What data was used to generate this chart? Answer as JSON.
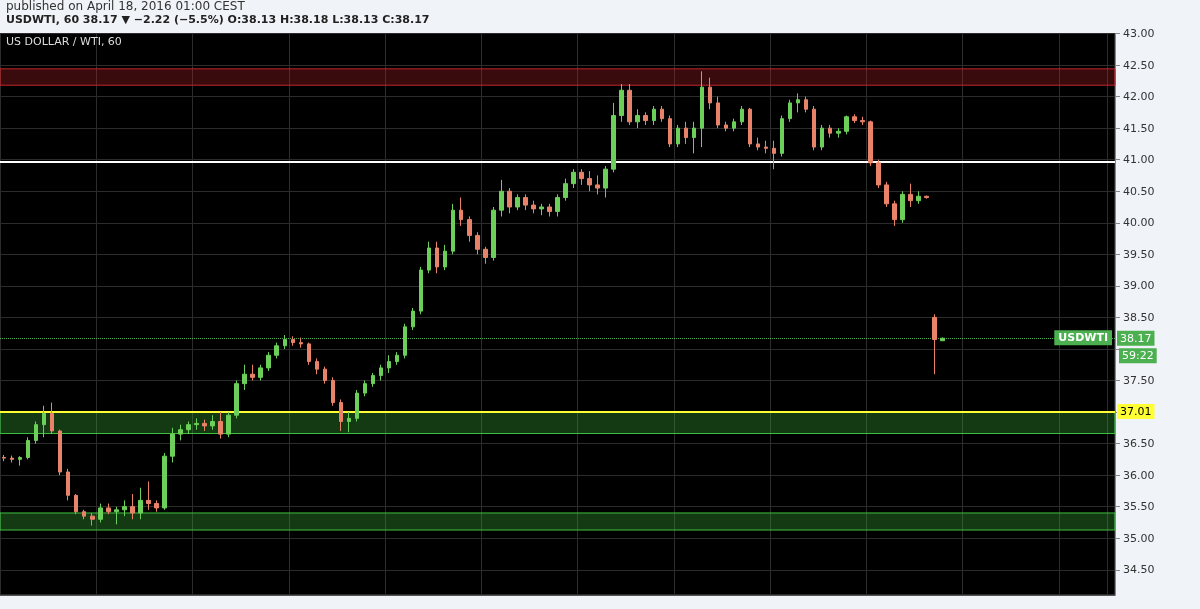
{
  "chart_data": {
    "type": "candlestick",
    "title": "published on April 18, 2016 01:00 CEST",
    "subtitle": "USDWTI, 60 38.17 ▼ −2.22 (−5.5%) O:38.13 H:38.18 L:38.13 C:38.17",
    "annotations": [
      "US DOLLAR / WTI, 60",
      {
        "text": "USDWTI",
        "y": 38.17
      },
      "59:22"
    ],
    "categories": [
      null,
      null,
      null,
      null,
      null,
      null,
      null,
      null,
      null,
      null,
      null,
      null,
      null,
      null,
      null,
      null,
      null,
      null,
      null,
      null,
      null,
      null,
      null,
      null,
      null,
      null,
      null,
      null,
      null,
      null,
      null,
      null,
      null,
      null,
      null,
      null,
      null,
      null,
      null,
      null,
      null,
      null,
      null,
      null,
      null,
      null,
      null,
      null,
      null,
      null,
      null,
      null,
      null,
      null,
      null,
      null,
      null,
      null,
      null,
      null,
      null,
      null,
      null,
      null,
      null,
      null,
      null,
      null,
      null,
      null,
      null,
      null,
      null,
      null,
      null,
      null,
      null,
      null,
      null,
      null,
      null,
      null,
      null,
      null,
      null,
      null,
      null,
      null,
      null,
      null,
      null,
      null,
      null,
      null,
      null,
      null,
      null,
      null,
      null,
      null,
      null,
      null,
      null,
      null,
      null,
      null,
      null,
      null,
      null,
      null,
      null,
      null,
      null,
      null,
      null,
      null,
      null,
      null,
      null,
      null,
      null,
      null,
      null,
      null,
      null,
      null,
      null,
      null,
      null,
      null,
      null,
      null,
      null,
      null,
      null,
      null,
      null,
      null,
      null
    ],
    "ohlc": [
      [
        36.28,
        36.32,
        36.22,
        36.27
      ],
      [
        36.27,
        36.31,
        36.2,
        36.25
      ],
      [
        36.25,
        36.3,
        36.15,
        36.28
      ],
      [
        36.28,
        36.6,
        36.25,
        36.55
      ],
      [
        36.55,
        36.85,
        36.5,
        36.8
      ],
      [
        36.8,
        37.1,
        36.6,
        36.98
      ],
      [
        36.98,
        37.15,
        36.65,
        36.7
      ],
      [
        36.7,
        36.72,
        36.0,
        36.05
      ],
      [
        36.05,
        36.1,
        35.6,
        35.68
      ],
      [
        35.68,
        35.7,
        35.38,
        35.42
      ],
      [
        35.42,
        35.45,
        35.3,
        35.35
      ],
      [
        35.35,
        35.4,
        35.2,
        35.3
      ],
      [
        35.3,
        35.55,
        35.25,
        35.48
      ],
      [
        35.48,
        35.55,
        35.38,
        35.42
      ],
      [
        35.42,
        35.5,
        35.22,
        35.45
      ],
      [
        35.45,
        35.6,
        35.35,
        35.5
      ],
      [
        35.5,
        35.7,
        35.3,
        35.4
      ],
      [
        35.4,
        35.8,
        35.3,
        35.6
      ],
      [
        35.6,
        35.9,
        35.45,
        35.55
      ],
      [
        35.55,
        35.6,
        35.42,
        35.48
      ],
      [
        35.48,
        36.35,
        35.45,
        36.3
      ],
      [
        36.3,
        36.75,
        36.2,
        36.65
      ],
      [
        36.65,
        36.8,
        36.55,
        36.72
      ],
      [
        36.72,
        36.85,
        36.65,
        36.8
      ],
      [
        36.8,
        36.9,
        36.72,
        36.82
      ],
      [
        36.82,
        36.88,
        36.7,
        36.78
      ],
      [
        36.78,
        36.95,
        36.72,
        36.85
      ],
      [
        36.85,
        37.0,
        36.58,
        36.65
      ],
      [
        36.65,
        37.0,
        36.6,
        36.95
      ],
      [
        36.95,
        37.5,
        36.9,
        37.45
      ],
      [
        37.45,
        37.75,
        37.35,
        37.6
      ],
      [
        37.6,
        37.75,
        37.5,
        37.55
      ],
      [
        37.55,
        37.75,
        37.5,
        37.7
      ],
      [
        37.7,
        37.95,
        37.65,
        37.9
      ],
      [
        37.9,
        38.1,
        37.85,
        38.05
      ],
      [
        38.05,
        38.22,
        38.0,
        38.15
      ],
      [
        38.15,
        38.2,
        38.05,
        38.1
      ],
      [
        38.1,
        38.18,
        38.02,
        38.08
      ],
      [
        38.08,
        38.1,
        37.75,
        37.8
      ],
      [
        37.8,
        37.85,
        37.6,
        37.68
      ],
      [
        37.68,
        37.72,
        37.45,
        37.5
      ],
      [
        37.5,
        37.55,
        37.1,
        37.15
      ],
      [
        37.15,
        37.2,
        36.7,
        36.85
      ],
      [
        36.85,
        37.0,
        36.68,
        36.9
      ],
      [
        36.9,
        37.35,
        36.85,
        37.3
      ],
      [
        37.3,
        37.5,
        37.25,
        37.45
      ],
      [
        37.45,
        37.62,
        37.4,
        37.58
      ],
      [
        37.58,
        37.75,
        37.5,
        37.7
      ],
      [
        37.7,
        37.9,
        37.62,
        37.8
      ],
      [
        37.8,
        37.95,
        37.75,
        37.9
      ],
      [
        37.9,
        38.4,
        37.85,
        38.35
      ],
      [
        38.35,
        38.65,
        38.3,
        38.6
      ],
      [
        38.6,
        39.3,
        38.55,
        39.25
      ],
      [
        39.25,
        39.7,
        39.2,
        39.6
      ],
      [
        39.6,
        39.7,
        39.2,
        39.3
      ],
      [
        39.3,
        39.65,
        39.25,
        39.55
      ],
      [
        39.55,
        40.3,
        39.5,
        40.2
      ],
      [
        40.2,
        40.4,
        39.95,
        40.05
      ],
      [
        40.05,
        40.1,
        39.7,
        39.8
      ],
      [
        39.8,
        39.85,
        39.5,
        39.58
      ],
      [
        39.58,
        39.62,
        39.35,
        39.45
      ],
      [
        39.45,
        40.25,
        39.4,
        40.2
      ],
      [
        40.2,
        40.68,
        40.1,
        40.5
      ],
      [
        40.5,
        40.55,
        40.15,
        40.25
      ],
      [
        40.25,
        40.45,
        40.2,
        40.4
      ],
      [
        40.4,
        40.45,
        40.2,
        40.28
      ],
      [
        40.28,
        40.35,
        40.15,
        40.22
      ],
      [
        40.22,
        40.3,
        40.12,
        40.25
      ],
      [
        40.25,
        40.3,
        40.1,
        40.18
      ],
      [
        40.18,
        40.45,
        40.1,
        40.4
      ],
      [
        40.4,
        40.7,
        40.35,
        40.62
      ],
      [
        40.62,
        40.85,
        40.55,
        40.8
      ],
      [
        40.8,
        40.85,
        40.6,
        40.7
      ],
      [
        40.7,
        40.82,
        40.5,
        40.6
      ],
      [
        40.6,
        40.75,
        40.45,
        40.55
      ],
      [
        40.55,
        40.9,
        40.4,
        40.85
      ],
      [
        40.85,
        41.9,
        40.8,
        41.7
      ],
      [
        41.7,
        42.2,
        41.6,
        42.1
      ],
      [
        42.1,
        42.2,
        41.55,
        41.6
      ],
      [
        41.6,
        41.8,
        41.5,
        41.7
      ],
      [
        41.7,
        41.75,
        41.55,
        41.62
      ],
      [
        41.62,
        41.85,
        41.55,
        41.8
      ],
      [
        41.8,
        41.85,
        41.6,
        41.65
      ],
      [
        41.65,
        41.7,
        41.2,
        41.25
      ],
      [
        41.25,
        41.55,
        41.2,
        41.5
      ],
      [
        41.5,
        41.6,
        41.25,
        41.35
      ],
      [
        41.35,
        41.6,
        41.1,
        41.5
      ],
      [
        41.5,
        42.4,
        41.2,
        42.15
      ],
      [
        42.15,
        42.3,
        41.8,
        41.9
      ],
      [
        41.9,
        42.0,
        41.5,
        41.55
      ],
      [
        41.55,
        41.6,
        41.45,
        41.5
      ],
      [
        41.5,
        41.65,
        41.45,
        41.6
      ],
      [
        41.6,
        41.85,
        41.55,
        41.8
      ],
      [
        41.8,
        41.82,
        41.2,
        41.25
      ],
      [
        41.25,
        41.35,
        41.15,
        41.2
      ],
      [
        41.2,
        41.3,
        41.1,
        41.18
      ],
      [
        41.18,
        41.3,
        40.85,
        41.1
      ],
      [
        41.1,
        41.7,
        41.05,
        41.65
      ],
      [
        41.65,
        41.95,
        41.6,
        41.9
      ],
      [
        41.9,
        42.05,
        41.75,
        41.95
      ],
      [
        41.95,
        42.0,
        41.75,
        41.8
      ],
      [
        41.8,
        41.85,
        41.15,
        41.2
      ],
      [
        41.2,
        41.55,
        41.15,
        41.5
      ],
      [
        41.5,
        41.55,
        41.35,
        41.42
      ],
      [
        41.42,
        41.5,
        41.35,
        41.45
      ],
      [
        41.45,
        41.7,
        41.4,
        41.68
      ],
      [
        41.68,
        41.72,
        41.58,
        41.62
      ],
      [
        41.62,
        41.68,
        41.55,
        41.6
      ],
      [
        41.6,
        41.62,
        40.9,
        40.95
      ],
      [
        40.95,
        41.0,
        40.55,
        40.6
      ],
      [
        40.6,
        40.65,
        40.25,
        40.3
      ],
      [
        40.3,
        40.35,
        39.95,
        40.05
      ],
      [
        40.05,
        40.5,
        40.0,
        40.45
      ],
      [
        40.45,
        40.62,
        40.25,
        40.35
      ],
      [
        40.35,
        40.5,
        40.3,
        40.42
      ],
      [
        40.42,
        40.43,
        40.38,
        40.4
      ],
      [
        38.5,
        38.55,
        37.6,
        38.15
      ],
      [
        38.13,
        38.18,
        38.13,
        38.17
      ],
      null,
      null,
      null,
      null,
      null,
      null,
      null,
      null,
      null,
      null,
      null,
      null,
      null,
      null,
      null,
      null,
      null,
      null,
      null,
      null,
      null
    ],
    "ylim": [
      34.1,
      43.0
    ],
    "yticks": [
      {
        "value": 34.5,
        "label": "34.50"
      },
      {
        "value": 35,
        "label": "35.00"
      },
      {
        "value": 35.5,
        "label": "35.50"
      },
      {
        "value": 36,
        "label": "36.00"
      },
      {
        "value": 36.5,
        "label": "36.50"
      },
      {
        "value": 37,
        "label": null
      },
      {
        "value": 37.5,
        "label": "37.50"
      },
      {
        "value": 38,
        "label": null
      },
      {
        "value": 38.5,
        "label": "38.50"
      },
      {
        "value": 39,
        "label": "39.00"
      },
      {
        "value": 39.5,
        "label": "39.50"
      },
      {
        "value": 40,
        "label": "40.00"
      },
      {
        "value": 40.5,
        "label": "40.50"
      },
      {
        "value": 41,
        "label": "41.00"
      },
      {
        "value": 41.5,
        "label": "41.50"
      },
      {
        "value": 42,
        "label": "42.00"
      },
      {
        "value": 42.5,
        "label": "42.50"
      },
      {
        "value": 43,
        "label": "43.00"
      }
    ],
    "ref_lines": [
      {
        "axis": "y",
        "value": 37.01,
        "label": "37.01",
        "color": "#ffff33"
      },
      {
        "axis": "y",
        "value": 40.97,
        "label": null,
        "color": "#ffffff"
      },
      {
        "axis": "y",
        "value": 38.17,
        "label": "38.17",
        "color": "#4caf50",
        "line_style": "dotted"
      }
    ],
    "bands": [
      {
        "axis": "y",
        "from": 42.18,
        "to": 42.44,
        "label": null,
        "color": "#c0262c"
      },
      {
        "axis": "y",
        "from": 36.66,
        "to": 37.0,
        "label": null,
        "color": "#3fc13f"
      },
      {
        "axis": "y",
        "from": 35.13,
        "to": 35.4,
        "label": null,
        "color": "#3fc13f"
      }
    ],
    "grid": true,
    "tick_labels": "y"
  }
}
